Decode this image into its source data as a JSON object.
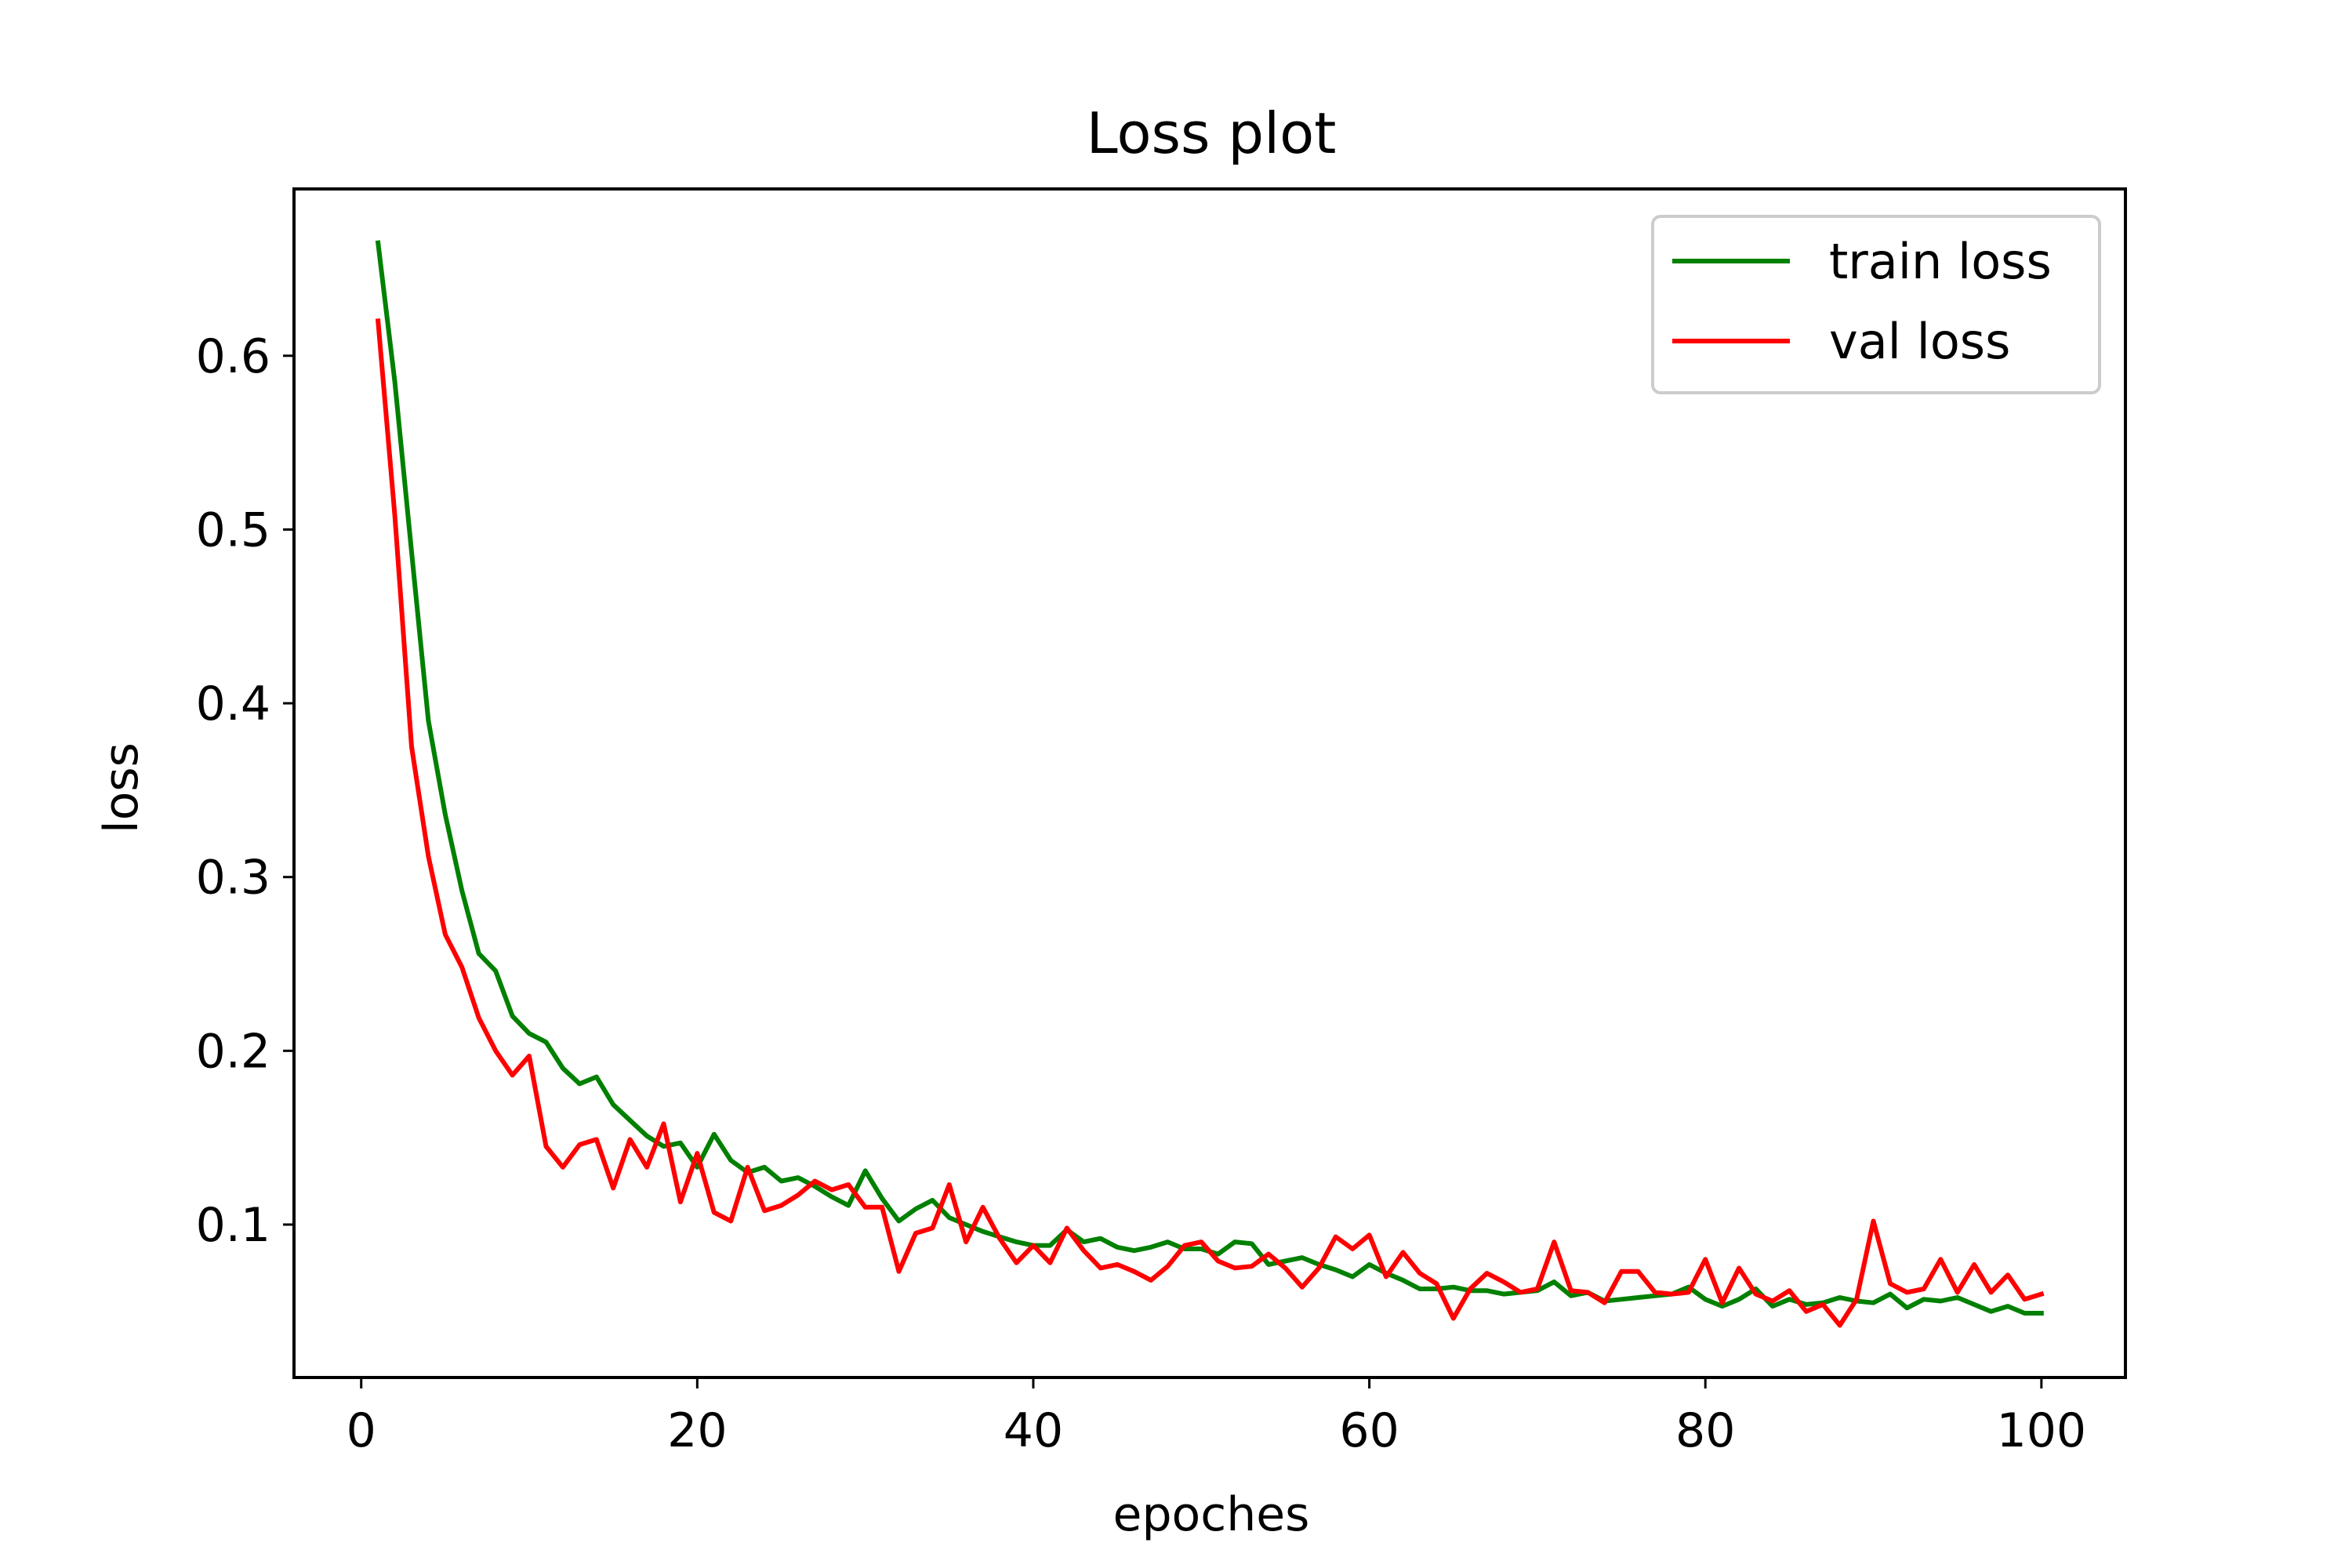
{
  "chart_data": {
    "type": "line",
    "title": "Loss plot",
    "xlabel": "epoches",
    "ylabel": "loss",
    "xlim": [
      -4,
      105
    ],
    "ylim": [
      0.012,
      0.696
    ],
    "xticks": [
      0,
      20,
      40,
      60,
      80,
      100
    ],
    "yticks": [
      0.1,
      0.2,
      0.3,
      0.4,
      0.5,
      0.6
    ],
    "grid": false,
    "legend_position": "top-right",
    "series": [
      {
        "name": "train loss",
        "color": "#008000",
        "x": [
          1,
          2,
          3,
          4,
          5,
          6,
          7,
          8,
          9,
          10,
          11,
          12,
          13,
          14,
          15,
          16,
          17,
          18,
          19,
          20,
          21,
          22,
          23,
          24,
          25,
          26,
          27,
          28,
          29,
          30,
          31,
          32,
          33,
          34,
          35,
          36,
          37,
          38,
          39,
          40,
          41,
          42,
          43,
          44,
          45,
          46,
          47,
          48,
          49,
          50,
          51,
          52,
          53,
          54,
          55,
          56,
          57,
          58,
          59,
          60,
          61,
          62,
          63,
          64,
          65,
          66,
          67,
          68,
          69,
          70,
          71,
          72,
          73,
          74,
          75,
          76,
          77,
          78,
          79,
          80,
          81,
          82,
          83,
          84,
          85,
          86,
          87,
          88,
          89,
          90,
          91,
          92,
          93,
          94,
          95,
          96,
          97,
          98,
          99,
          100
        ],
        "y": [
          0.665,
          0.585,
          0.487,
          0.39,
          0.336,
          0.292,
          0.256,
          0.246,
          0.22,
          0.21,
          0.205,
          0.19,
          0.181,
          0.185,
          0.169,
          0.16,
          0.151,
          0.145,
          0.147,
          0.133,
          0.152,
          0.137,
          0.13,
          0.133,
          0.125,
          0.127,
          0.122,
          0.116,
          0.111,
          0.131,
          0.115,
          0.102,
          0.109,
          0.114,
          0.104,
          0.1,
          0.096,
          0.093,
          0.09,
          0.088,
          0.088,
          0.097,
          0.09,
          0.092,
          0.087,
          0.085,
          0.087,
          0.09,
          0.086,
          0.086,
          0.083,
          0.09,
          0.089,
          0.077,
          0.079,
          0.081,
          0.077,
          0.074,
          0.07,
          0.077,
          0.072,
          0.068,
          0.063,
          0.063,
          0.064,
          0.062,
          0.062,
          0.06,
          0.061,
          0.062,
          0.067,
          0.059,
          0.061,
          0.056,
          0.057,
          0.058,
          0.059,
          0.06,
          0.064,
          0.057,
          0.053,
          0.057,
          0.063,
          0.053,
          0.057,
          0.054,
          0.055,
          0.058,
          0.056,
          0.055,
          0.06,
          0.052,
          0.057,
          0.056,
          0.058,
          0.054,
          0.05,
          0.053,
          0.049,
          0.049
        ]
      },
      {
        "name": "val loss",
        "color": "#ff0000",
        "x": [
          1,
          2,
          3,
          4,
          5,
          6,
          7,
          8,
          9,
          10,
          11,
          12,
          13,
          14,
          15,
          16,
          17,
          18,
          19,
          20,
          21,
          22,
          23,
          24,
          25,
          26,
          27,
          28,
          29,
          30,
          31,
          32,
          33,
          34,
          35,
          36,
          37,
          38,
          39,
          40,
          41,
          42,
          43,
          44,
          45,
          46,
          47,
          48,
          49,
          50,
          51,
          52,
          53,
          54,
          55,
          56,
          57,
          58,
          59,
          60,
          61,
          62,
          63,
          64,
          65,
          66,
          67,
          68,
          69,
          70,
          71,
          72,
          73,
          74,
          75,
          76,
          77,
          78,
          79,
          80,
          81,
          82,
          83,
          84,
          85,
          86,
          87,
          88,
          89,
          90,
          91,
          92,
          93,
          94,
          95,
          96,
          97,
          98,
          99,
          100
        ],
        "y": [
          0.62,
          0.508,
          0.375,
          0.312,
          0.267,
          0.248,
          0.219,
          0.2,
          0.186,
          0.197,
          0.145,
          0.133,
          0.146,
          0.149,
          0.121,
          0.149,
          0.133,
          0.158,
          0.113,
          0.141,
          0.107,
          0.102,
          0.133,
          0.108,
          0.111,
          0.117,
          0.125,
          0.12,
          0.123,
          0.11,
          0.11,
          0.073,
          0.095,
          0.098,
          0.123,
          0.09,
          0.11,
          0.092,
          0.078,
          0.088,
          0.078,
          0.098,
          0.085,
          0.075,
          0.077,
          0.073,
          0.068,
          0.076,
          0.088,
          0.09,
          0.079,
          0.075,
          0.076,
          0.083,
          0.075,
          0.064,
          0.075,
          0.093,
          0.086,
          0.094,
          0.07,
          0.084,
          0.072,
          0.066,
          0.046,
          0.063,
          0.072,
          0.067,
          0.061,
          0.063,
          0.09,
          0.062,
          0.061,
          0.055,
          0.073,
          0.073,
          0.061,
          0.06,
          0.061,
          0.08,
          0.055,
          0.075,
          0.06,
          0.056,
          0.062,
          0.05,
          0.054,
          0.042,
          0.057,
          0.102,
          0.066,
          0.061,
          0.063,
          0.08,
          0.061,
          0.077,
          0.061,
          0.071,
          0.057,
          0.06
        ]
      }
    ]
  }
}
